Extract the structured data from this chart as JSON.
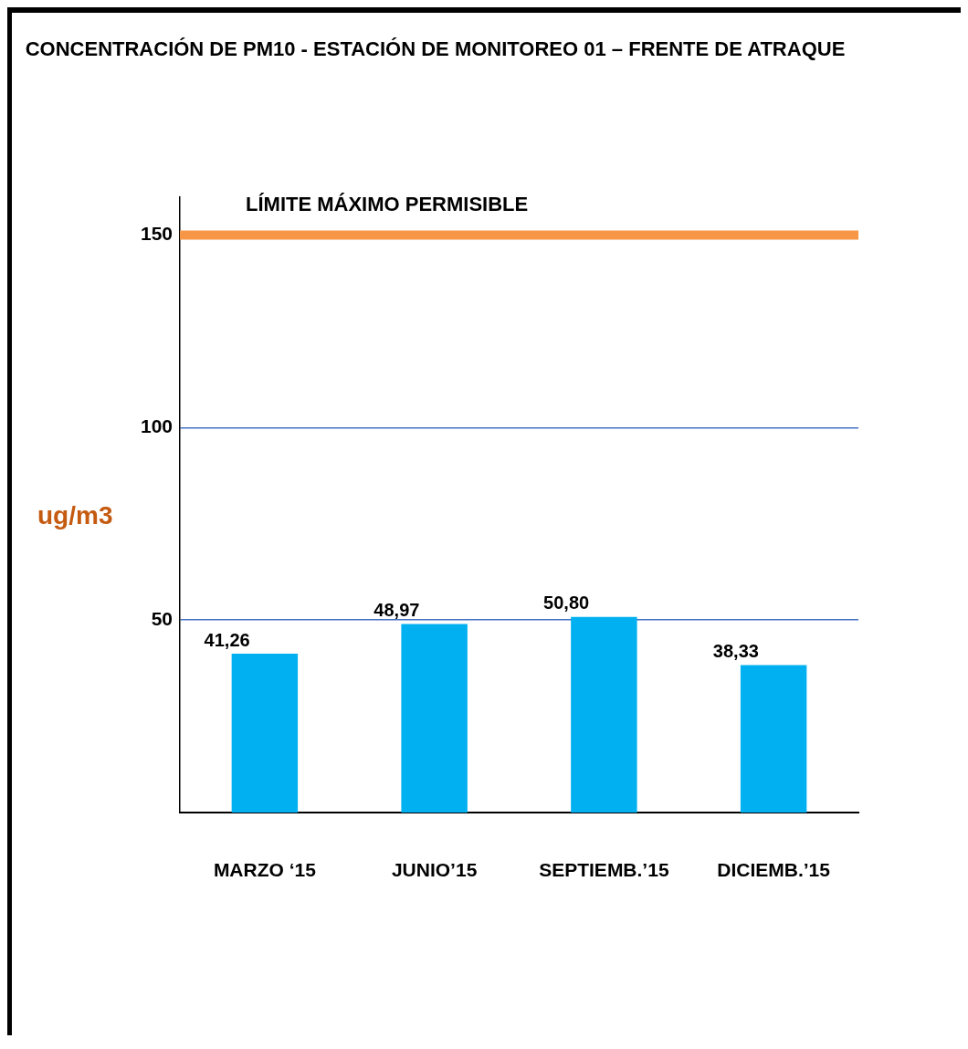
{
  "chart_data": {
    "type": "bar",
    "title": "CONCENTRACIÓN DE PM10 - ESTACIÓN DE MONITOREO 01 – FRENTE DE ATRAQUE",
    "ylabel": "ug/m3",
    "categories": [
      "MARZO ‘15",
      "JUNIO’15",
      "SEPTIEMB.’15",
      "DICIEMB.’15"
    ],
    "values": [
      41.26,
      48.97,
      50.8,
      38.33
    ],
    "value_labels": [
      "41,26",
      "48,97",
      "50,80",
      "38,33"
    ],
    "color": "#00b0f0",
    "ylim": [
      0,
      160
    ],
    "yticks": [
      50,
      100,
      150
    ],
    "grid": "y",
    "legend": false,
    "ref_lines": [
      {
        "axis": "y",
        "value": 150,
        "label": "LÍMITE MÁXIMO PERMISIBLE",
        "color": "#f79646"
      }
    ]
  }
}
